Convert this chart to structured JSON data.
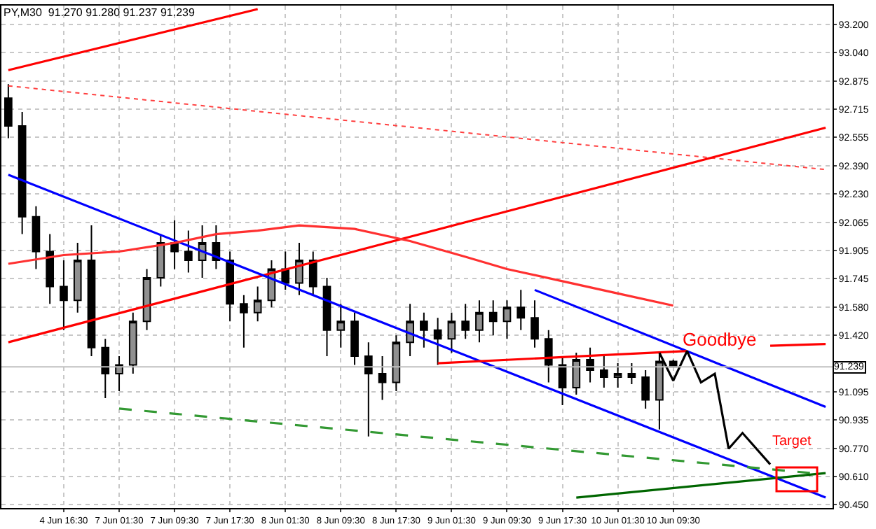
{
  "chart_data": {
    "type": "candlestick",
    "title": "PY,M30  91.270 91.280 91.237 91.239",
    "categories": [
      null,
      null,
      null,
      null,
      "4 Jun 16:30",
      null,
      null,
      null,
      "7 Jun 01:30",
      null,
      null,
      null,
      "7 Jun 09:30",
      null,
      null,
      null,
      "7 Jun 17:30",
      null,
      null,
      null,
      "8 Jun 01:30",
      null,
      null,
      null,
      "8 Jun 09:30",
      null,
      null,
      null,
      "8 Jun 17:30",
      null,
      null,
      null,
      "9 Jun 01:30",
      null,
      null,
      null,
      "9 Jun 09:30",
      null,
      null,
      null,
      "9 Jun 17:30",
      null,
      null,
      null,
      "10 Jun 01:30",
      null,
      null,
      null,
      "10 Jun 09:30",
      null,
      null,
      null,
      null,
      null,
      null,
      null,
      null,
      null,
      null,
      null
    ],
    "ylim": [
      90.43,
      93.31
    ],
    "yticks": [
      {
        "value": 93.2,
        "label": "93.200"
      },
      {
        "value": 93.04,
        "label": "93.040"
      },
      {
        "value": 92.875,
        "label": "92.875"
      },
      {
        "value": 92.715,
        "label": "92.715"
      },
      {
        "value": 92.555,
        "label": "92.555"
      },
      {
        "value": 92.39,
        "label": "92.390"
      },
      {
        "value": 92.23,
        "label": "92.230"
      },
      {
        "value": 92.065,
        "label": "92.065"
      },
      {
        "value": 91.905,
        "label": "91.905"
      },
      {
        "value": 91.745,
        "label": "91.745"
      },
      {
        "value": 91.58,
        "label": "91.580"
      },
      {
        "value": 91.42,
        "label": "91.420"
      },
      {
        "value": 91.095,
        "label": "91.095"
      },
      {
        "value": 90.935,
        "label": "90.935"
      },
      {
        "value": 90.77,
        "label": "90.770"
      },
      {
        "value": 90.61,
        "label": "90.610"
      },
      {
        "value": 90.45,
        "label": "90.450"
      }
    ],
    "grid": true,
    "ref_lines": [
      {
        "axis": "y",
        "value": 91.239,
        "label": "91.239",
        "color": "#c0c0c0"
      }
    ],
    "annotations": [
      "Goodbye",
      "Target"
    ],
    "series": [
      {
        "type": "line",
        "color": "#ff0000",
        "values": [
          92.94,
          null,
          null,
          null,
          null,
          null,
          null,
          null,
          null,
          null,
          null,
          null,
          null,
          null,
          null,
          null,
          null,
          null,
          93.29,
          null,
          null,
          null,
          null,
          null,
          null,
          null,
          null,
          null,
          null,
          null,
          null,
          null,
          null,
          null,
          null,
          null,
          null,
          null,
          null,
          null,
          null,
          null,
          null,
          null,
          null,
          null,
          null,
          null,
          null,
          null,
          null,
          null,
          null,
          null,
          null,
          null,
          null,
          null,
          null,
          null
        ]
      },
      {
        "type": "line",
        "color": "#ff4040",
        "line_style": "dotted",
        "values": [
          92.85,
          null,
          null,
          null,
          null,
          null,
          null,
          null,
          null,
          null,
          null,
          null,
          null,
          null,
          null,
          null,
          null,
          null,
          null,
          null,
          null,
          null,
          null,
          null,
          null,
          null,
          null,
          null,
          null,
          null,
          null,
          null,
          null,
          null,
          null,
          null,
          null,
          null,
          null,
          null,
          null,
          null,
          null,
          null,
          null,
          null,
          null,
          null,
          null,
          null,
          null,
          null,
          null,
          null,
          null,
          null,
          null,
          null,
          null,
          92.37
        ]
      },
      {
        "type": "line",
        "color": "#ff0000",
        "values": [
          91.38,
          null,
          null,
          null,
          null,
          null,
          null,
          null,
          null,
          null,
          null,
          null,
          null,
          null,
          null,
          null,
          null,
          null,
          null,
          null,
          null,
          null,
          null,
          null,
          null,
          null,
          null,
          null,
          null,
          null,
          null,
          null,
          null,
          null,
          null,
          null,
          null,
          null,
          null,
          null,
          null,
          null,
          null,
          null,
          null,
          null,
          null,
          null,
          null,
          null,
          null,
          null,
          null,
          null,
          null,
          null,
          null,
          null,
          null,
          92.61
        ]
      },
      {
        "type": "line",
        "color": "#0000ff",
        "values": [
          92.34,
          null,
          null,
          null,
          null,
          null,
          null,
          null,
          null,
          null,
          null,
          null,
          null,
          null,
          null,
          null,
          null,
          null,
          null,
          null,
          null,
          null,
          null,
          null,
          null,
          null,
          null,
          null,
          null,
          null,
          null,
          null,
          null,
          null,
          null,
          null,
          null,
          null,
          null,
          null,
          null,
          null,
          null,
          null,
          null,
          null,
          null,
          null,
          null,
          null,
          null,
          null,
          null,
          null,
          null,
          null,
          null,
          null,
          null,
          90.49
        ]
      },
      {
        "type": "line",
        "color": "#0000ff",
        "values": [
          null,
          null,
          null,
          null,
          null,
          null,
          null,
          null,
          null,
          null,
          null,
          null,
          null,
          null,
          null,
          null,
          null,
          null,
          null,
          null,
          null,
          null,
          null,
          null,
          null,
          null,
          null,
          null,
          null,
          null,
          null,
          null,
          null,
          null,
          null,
          null,
          null,
          null,
          91.68,
          null,
          null,
          null,
          null,
          null,
          null,
          null,
          null,
          null,
          null,
          null,
          null,
          null,
          null,
          null,
          null,
          null,
          null,
          null,
          null,
          91.01
        ]
      },
      {
        "type": "line",
        "color": "#ff3030",
        "values": [
          91.83,
          null,
          null,
          null,
          91.88,
          null,
          null,
          null,
          91.9,
          null,
          null,
          null,
          91.95,
          null,
          null,
          92.0,
          null,
          null,
          92.02,
          null,
          null,
          92.05,
          null,
          null,
          null,
          92.03,
          null,
          null,
          null,
          91.96,
          null,
          null,
          null,
          91.87,
          null,
          null,
          91.8,
          null,
          null,
          null,
          91.73,
          null,
          null,
          null,
          91.66,
          null,
          null,
          null,
          91.59,
          null,
          null,
          null,
          null,
          null,
          null,
          null,
          null,
          null,
          null,
          null
        ]
      },
      {
        "type": "line",
        "color": "#ff0000",
        "values": [
          null,
          null,
          null,
          null,
          null,
          null,
          null,
          null,
          null,
          null,
          null,
          null,
          null,
          null,
          null,
          null,
          null,
          null,
          null,
          null,
          null,
          null,
          null,
          null,
          null,
          null,
          null,
          null,
          null,
          null,
          null,
          91.26,
          null,
          null,
          null,
          null,
          null,
          null,
          null,
          null,
          null,
          null,
          null,
          null,
          null,
          null,
          null,
          null,
          null,
          91.33,
          null,
          null,
          null,
          null,
          null,
          null,
          null,
          null,
          null,
          null
        ]
      },
      {
        "type": "line",
        "color": "#ff0000",
        "values": [
          null,
          null,
          null,
          null,
          null,
          null,
          null,
          null,
          null,
          null,
          null,
          null,
          null,
          null,
          null,
          null,
          null,
          null,
          null,
          null,
          null,
          null,
          null,
          null,
          null,
          null,
          null,
          null,
          null,
          null,
          null,
          null,
          null,
          null,
          null,
          null,
          null,
          null,
          null,
          null,
          null,
          null,
          null,
          null,
          null,
          null,
          null,
          null,
          null,
          null,
          null,
          null,
          null,
          null,
          null,
          91.36,
          null,
          null,
          null,
          91.37
        ]
      },
      {
        "type": "line",
        "color": "#339933",
        "line_style": "dashed",
        "values": [
          null,
          null,
          null,
          null,
          null,
          null,
          null,
          null,
          91.0,
          null,
          null,
          null,
          null,
          null,
          null,
          null,
          null,
          null,
          null,
          null,
          null,
          null,
          null,
          null,
          null,
          null,
          null,
          null,
          null,
          null,
          null,
          null,
          null,
          null,
          null,
          null,
          null,
          null,
          null,
          null,
          null,
          null,
          null,
          null,
          null,
          null,
          null,
          null,
          null,
          null,
          null,
          null,
          null,
          null,
          null,
          null,
          null,
          null,
          90.63,
          null
        ]
      },
      {
        "type": "line",
        "color": "#006600",
        "values": [
          null,
          null,
          null,
          null,
          null,
          null,
          null,
          null,
          null,
          null,
          null,
          null,
          null,
          null,
          null,
          null,
          null,
          null,
          null,
          null,
          null,
          null,
          null,
          null,
          null,
          null,
          null,
          null,
          null,
          null,
          null,
          null,
          null,
          null,
          null,
          null,
          null,
          null,
          null,
          null,
          null,
          90.49,
          null,
          null,
          null,
          null,
          null,
          null,
          null,
          null,
          null,
          null,
          null,
          null,
          null,
          null,
          null,
          null,
          null,
          90.63
        ]
      },
      {
        "type": "line",
        "color": "#000000",
        "values": [
          null,
          null,
          null,
          null,
          null,
          null,
          null,
          null,
          null,
          null,
          null,
          null,
          null,
          null,
          null,
          null,
          null,
          null,
          null,
          null,
          null,
          null,
          null,
          null,
          null,
          null,
          null,
          null,
          null,
          null,
          null,
          null,
          null,
          null,
          null,
          null,
          null,
          null,
          null,
          null,
          null,
          null,
          null,
          null,
          null,
          null,
          null,
          91.32,
          91.16,
          91.33,
          91.15,
          91.2,
          90.77,
          90.86,
          null,
          90.68,
          null,
          null,
          null,
          null
        ]
      },
      {
        "color": "#000000",
        "ohlc": [
          [
            92.78,
            92.86,
            92.55,
            92.62
          ],
          [
            92.62,
            92.7,
            92.0,
            92.1
          ],
          [
            92.1,
            92.16,
            91.8,
            91.9
          ],
          [
            91.9,
            92.0,
            91.6,
            91.7
          ],
          [
            91.7,
            91.85,
            91.45,
            91.62
          ],
          [
            91.62,
            91.95,
            91.55,
            91.85
          ],
          [
            91.85,
            92.05,
            91.3,
            91.35
          ],
          [
            91.35,
            91.4,
            91.06,
            91.2
          ],
          [
            91.2,
            91.3,
            91.1,
            91.25
          ],
          [
            91.25,
            91.55,
            91.2,
            91.5
          ],
          [
            91.5,
            91.8,
            91.45,
            91.75
          ],
          [
            91.75,
            92.0,
            91.7,
            91.95
          ],
          [
            91.95,
            92.08,
            91.8,
            91.9
          ],
          [
            91.9,
            92.02,
            91.78,
            91.85
          ],
          [
            91.85,
            92.05,
            91.75,
            91.95
          ],
          [
            91.95,
            92.05,
            91.8,
            91.85
          ],
          [
            91.85,
            91.9,
            91.5,
            91.6
          ],
          [
            91.6,
            91.65,
            91.35,
            91.55
          ],
          [
            91.55,
            91.7,
            91.5,
            91.62
          ],
          [
            91.62,
            91.85,
            91.58,
            91.8
          ],
          [
            91.8,
            91.9,
            91.68,
            91.72
          ],
          [
            91.72,
            91.95,
            91.65,
            91.85
          ],
          [
            91.85,
            91.9,
            91.65,
            91.7
          ],
          [
            91.7,
            91.75,
            91.3,
            91.45
          ],
          [
            91.45,
            91.6,
            91.35,
            91.5
          ],
          [
            91.5,
            91.55,
            91.25,
            91.3
          ],
          [
            91.3,
            91.38,
            90.84,
            91.2
          ],
          [
            91.2,
            91.3,
            91.05,
            91.15
          ],
          [
            91.15,
            91.42,
            91.1,
            91.38
          ],
          [
            91.38,
            91.6,
            91.3,
            91.5
          ],
          [
            91.5,
            91.55,
            91.35,
            91.45
          ],
          [
            91.45,
            91.52,
            91.25,
            91.4
          ],
          [
            91.4,
            91.55,
            91.32,
            91.5
          ],
          [
            91.5,
            91.6,
            91.4,
            91.45
          ],
          [
            91.45,
            91.62,
            91.38,
            91.55
          ],
          [
            91.55,
            91.62,
            91.42,
            91.5
          ],
          [
            91.5,
            91.62,
            91.4,
            91.58
          ],
          [
            91.58,
            91.68,
            91.45,
            91.52
          ],
          [
            91.52,
            91.62,
            91.35,
            91.4
          ],
          [
            91.4,
            91.45,
            91.15,
            91.25
          ],
          [
            91.25,
            91.3,
            91.02,
            91.12
          ],
          [
            91.12,
            91.32,
            91.08,
            91.28
          ],
          [
            91.28,
            91.35,
            91.15,
            91.22
          ],
          [
            91.22,
            91.3,
            91.12,
            91.18
          ],
          [
            91.18,
            91.26,
            91.12,
            91.2
          ],
          [
            91.2,
            91.26,
            91.14,
            91.18
          ],
          [
            91.18,
            91.22,
            91.0,
            91.05
          ],
          [
            91.05,
            91.32,
            90.88,
            91.27
          ],
          [
            91.27,
            91.28,
            91.237,
            91.239
          ],
          null,
          null,
          null,
          null,
          null,
          null,
          null,
          null,
          null,
          null,
          null
        ]
      }
    ]
  }
}
